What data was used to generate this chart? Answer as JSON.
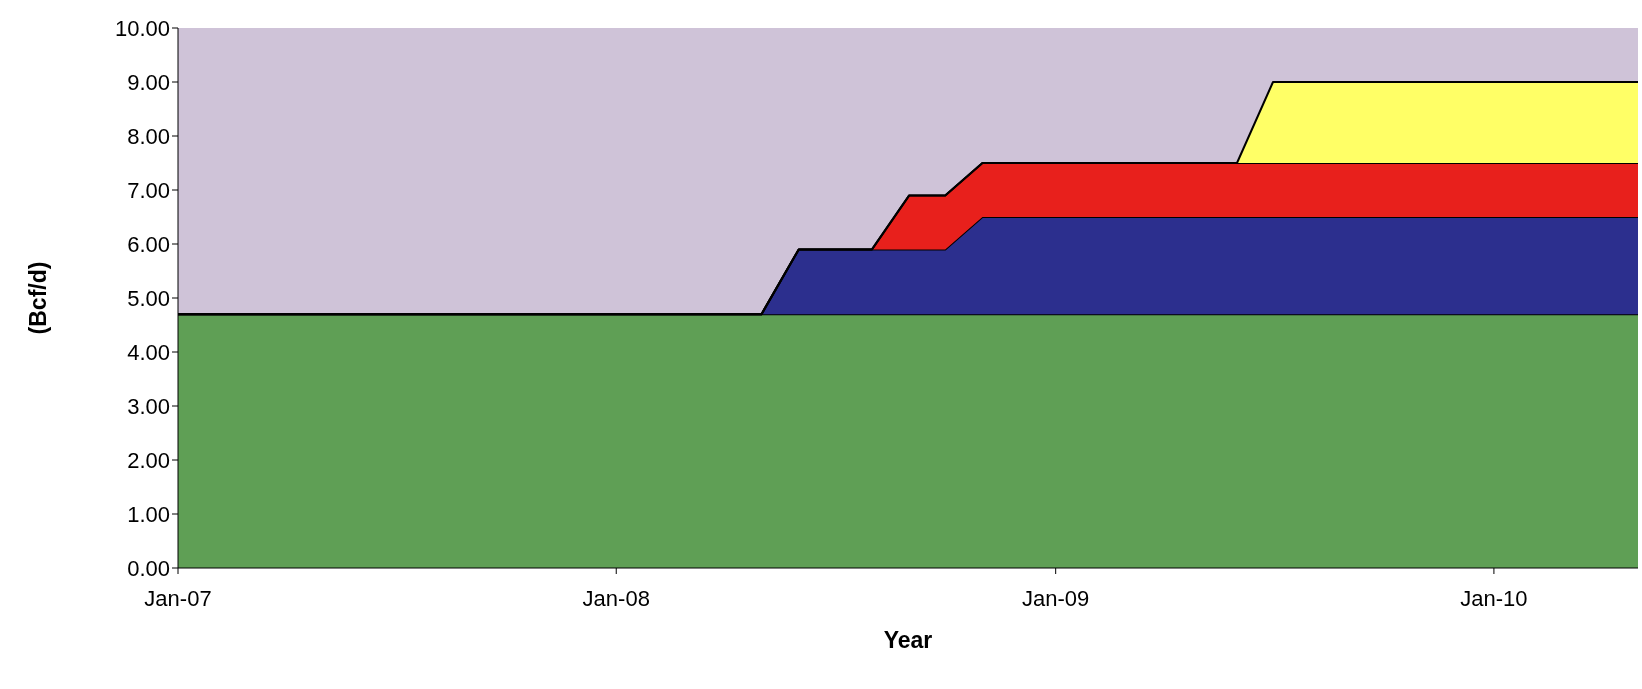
{
  "chart_data": {
    "type": "area",
    "stacked": true,
    "xlabel": "Year",
    "ylabel": "(Bcf/d)",
    "x": [
      "2007-01",
      "2008-05",
      "2008-06",
      "2008-08",
      "2008-09",
      "2008-10",
      "2008-11",
      "2009-06",
      "2009-07",
      "2010-05"
    ],
    "series": [
      {
        "color": "#5f9f55",
        "values": [
          4.7,
          4.7,
          4.7,
          4.7,
          4.7,
          4.7,
          4.7,
          4.7,
          4.7,
          4.7
        ]
      },
      {
        "color": "#2c2f8e",
        "values": [
          0,
          0,
          1.2,
          1.2,
          1.2,
          1.2,
          1.8,
          1.8,
          1.8,
          1.8
        ]
      },
      {
        "color": "#e8201c",
        "values": [
          0,
          0,
          0,
          0,
          1.0,
          1.0,
          1.0,
          1.0,
          1.0,
          1.0
        ]
      },
      {
        "color": "#ffff66",
        "values": [
          0,
          0,
          0,
          0,
          0,
          0,
          0,
          0,
          1.5,
          1.5
        ]
      }
    ],
    "xlim": [
      "2007-01",
      "2010-05"
    ],
    "xticks": [
      {
        "value": "2007-01",
        "label": "Jan-07"
      },
      {
        "value": "2008-01",
        "label": "Jan-08"
      },
      {
        "value": "2009-01",
        "label": "Jan-09"
      },
      {
        "value": "2010-01",
        "label": "Jan-10"
      }
    ],
    "ylim": [
      0,
      10
    ],
    "yticks": [
      {
        "value": 0,
        "label": "0.00"
      },
      {
        "value": 1,
        "label": "1.00"
      },
      {
        "value": 2,
        "label": "2.00"
      },
      {
        "value": 3,
        "label": "3.00"
      },
      {
        "value": 4,
        "label": "4.00"
      },
      {
        "value": 5,
        "label": "5.00"
      },
      {
        "value": 6,
        "label": "6.00"
      },
      {
        "value": 7,
        "label": "7.00"
      },
      {
        "value": 8,
        "label": "8.00"
      },
      {
        "value": 9,
        "label": "9.00"
      },
      {
        "value": 10,
        "label": "10.00"
      }
    ],
    "grid": false,
    "legend": false
  }
}
